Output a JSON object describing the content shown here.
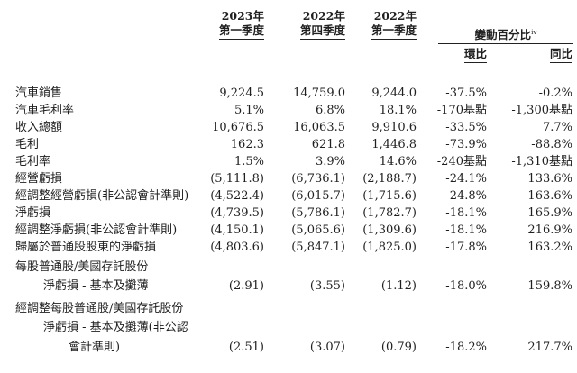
{
  "header": {
    "col1_line1": "2023年",
    "col1_line2": "第一季度",
    "col2_line1": "2022年",
    "col2_line2": "第四季度",
    "col3_line1": "2022年",
    "col3_line2": "第一季度",
    "pct_change": "變動百分比",
    "pct_change_note": "iv",
    "qoq": "環比",
    "yoy": "同比"
  },
  "rows": [
    {
      "label": "汽車銷售",
      "q1_2023": "9,224.5",
      "q4_2022": "14,759.0",
      "q1_2022": "9,244.0",
      "qoq": "-37.5%",
      "yoy": "-0.2%"
    },
    {
      "label": "汽車毛利率",
      "q1_2023": "5.1%",
      "q4_2022": "6.8%",
      "q1_2022": "18.1%",
      "qoq": "-170基點",
      "yoy": "-1,300基點"
    },
    {
      "label": "收入總額",
      "q1_2023": "10,676.5",
      "q4_2022": "16,063.5",
      "q1_2022": "9,910.6",
      "qoq": "-33.5%",
      "yoy": "7.7%"
    },
    {
      "label": "毛利",
      "q1_2023": "162.3",
      "q4_2022": "621.8",
      "q1_2022": "1,446.8",
      "qoq": "-73.9%",
      "yoy": "-88.8%"
    },
    {
      "label": "毛利率",
      "q1_2023": "1.5%",
      "q4_2022": "3.9%",
      "q1_2022": "14.6%",
      "qoq": "-240基點",
      "yoy": "-1,310基點"
    },
    {
      "label": "經營虧損",
      "q1_2023": "(5,111.8)",
      "q4_2022": "(6,736.1)",
      "q1_2022": "(2,188.7)",
      "qoq": "-24.1%",
      "yoy": "133.6%"
    },
    {
      "label": "經調整經營虧損(非公認會計準則)",
      "q1_2023": "(4,522.4)",
      "q4_2022": "(6,015.7)",
      "q1_2022": "(1,715.6)",
      "qoq": "-24.8%",
      "yoy": "163.6%"
    },
    {
      "label": "淨虧損",
      "q1_2023": "(4,739.5)",
      "q4_2022": "(5,786.1)",
      "q1_2022": "(1,782.7)",
      "qoq": "-18.1%",
      "yoy": "165.9%"
    },
    {
      "label": "經調整淨虧損(非公認會計準則)",
      "q1_2023": "(4,150.1)",
      "q4_2022": "(5,065.6)",
      "q1_2022": "(1,309.6)",
      "qoq": "-18.1%",
      "yoy": "216.9%"
    },
    {
      "label": "歸屬於普通股股東的淨虧損",
      "q1_2023": "(4,803.6)",
      "q4_2022": "(5,847.1)",
      "q1_2022": "(1,825.0)",
      "qoq": "-17.8%",
      "yoy": "163.2%"
    }
  ],
  "eps": {
    "label_line1": "每股普通股/美國存託股份",
    "label_line2": "淨虧損 - 基本及攤薄",
    "q1_2023": "(2.91)",
    "q4_2022": "(3.55)",
    "q1_2022": "(1.12)",
    "qoq": "-18.0%",
    "yoy": "159.8%"
  },
  "adj_eps": {
    "label_line1": "經調整每股普通股/美國存託股份",
    "label_line2": "淨虧損 - 基本及攤薄(非公認",
    "label_line3": "會計準則)",
    "q1_2023": "(2.51)",
    "q4_2022": "(3.07)",
    "q1_2022": "(0.79)",
    "qoq": "-18.2%",
    "yoy": "217.7%"
  }
}
